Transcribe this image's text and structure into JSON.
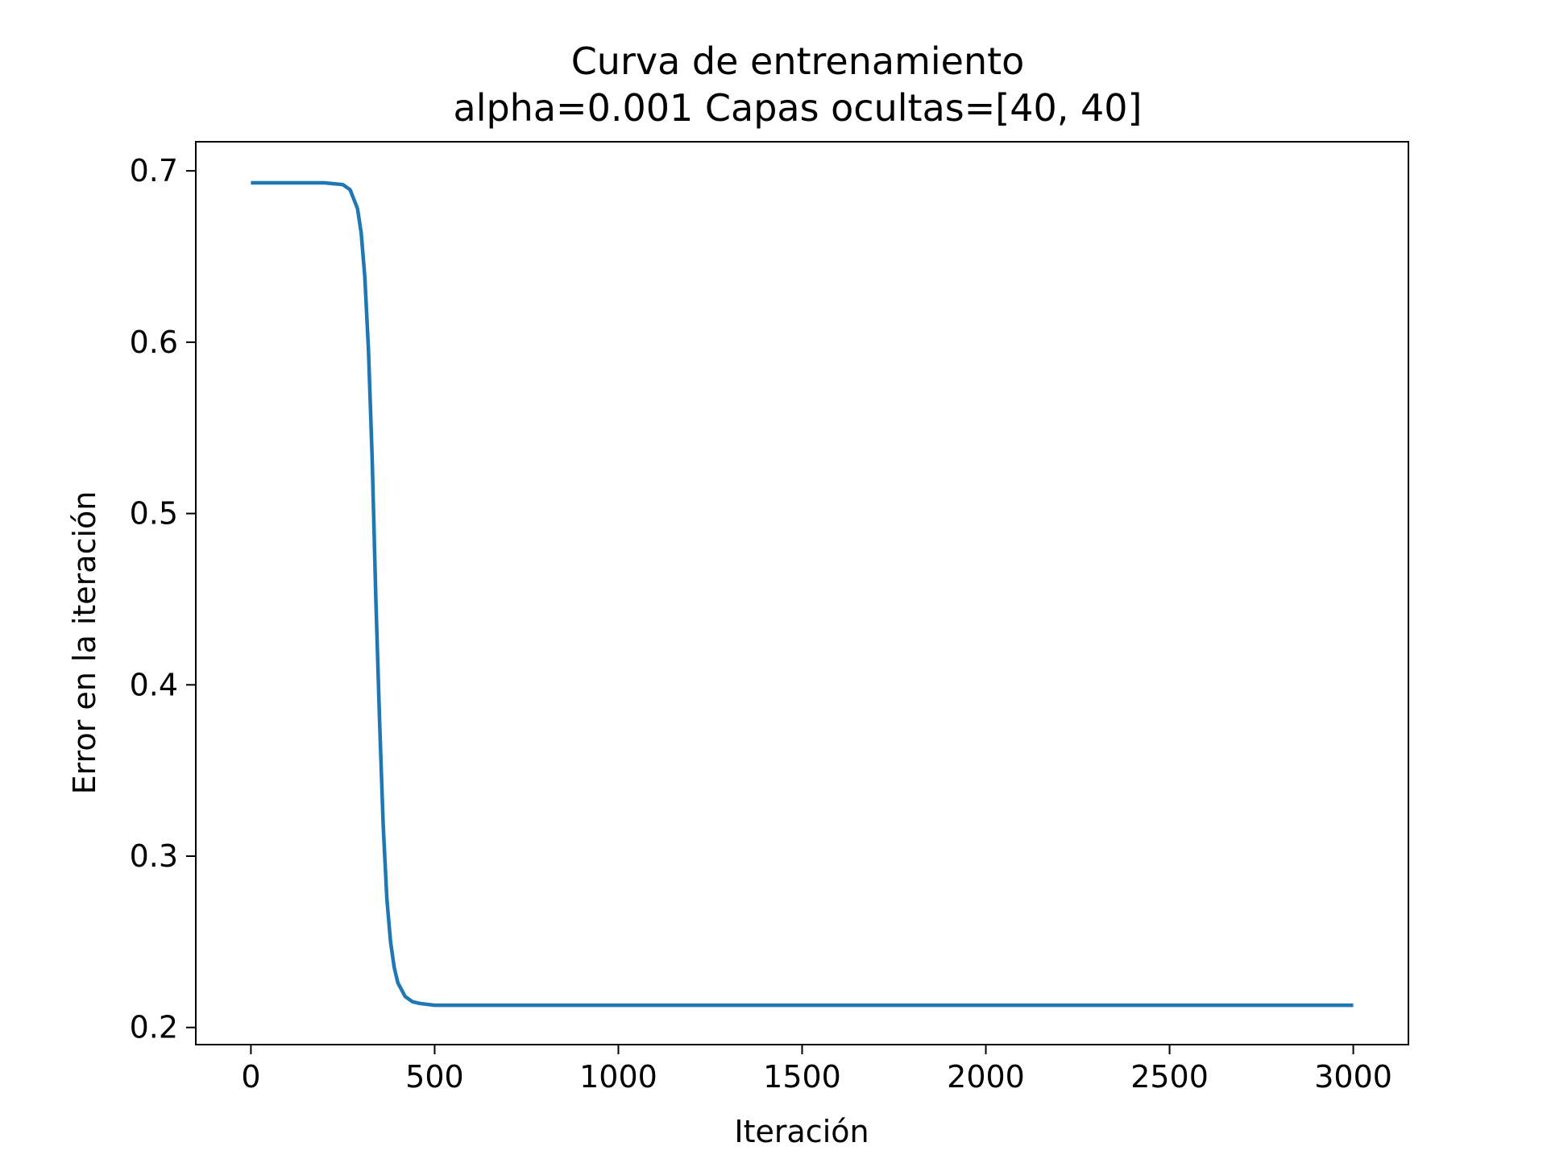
{
  "chart_data": {
    "type": "line",
    "title": "Curva de entrenamiento",
    "subtitle": "alpha=0.001 Capas ocultas=[40, 40]",
    "xlabel": "Iteración",
    "ylabel": "Error en la iteración",
    "xlim": [
      -150,
      3150
    ],
    "ylim": [
      0.19,
      0.717
    ],
    "xticks": [
      0,
      500,
      1000,
      1500,
      2000,
      2500,
      3000
    ],
    "xtick_labels": [
      "0",
      "500",
      "1000",
      "1500",
      "2000",
      "2500",
      "3000"
    ],
    "yticks": [
      0.2,
      0.3,
      0.4,
      0.5,
      0.6,
      0.7
    ],
    "ytick_labels": [
      "0.2",
      "0.3",
      "0.4",
      "0.5",
      "0.6",
      "0.7"
    ],
    "grid": false,
    "legend": "none",
    "series": [
      {
        "color": "#1f77b4",
        "x": [
          0,
          100,
          200,
          250,
          270,
          290,
          300,
          310,
          320,
          330,
          340,
          350,
          360,
          370,
          380,
          390,
          400,
          420,
          440,
          460,
          500,
          550,
          600,
          800,
          1000,
          1500,
          2000,
          2500,
          3000
        ],
        "y": [
          0.693,
          0.693,
          0.693,
          0.692,
          0.689,
          0.678,
          0.664,
          0.638,
          0.595,
          0.532,
          0.45,
          0.38,
          0.318,
          0.275,
          0.25,
          0.235,
          0.226,
          0.218,
          0.215,
          0.214,
          0.213,
          0.213,
          0.213,
          0.213,
          0.213,
          0.213,
          0.213,
          0.213,
          0.213
        ]
      }
    ]
  }
}
